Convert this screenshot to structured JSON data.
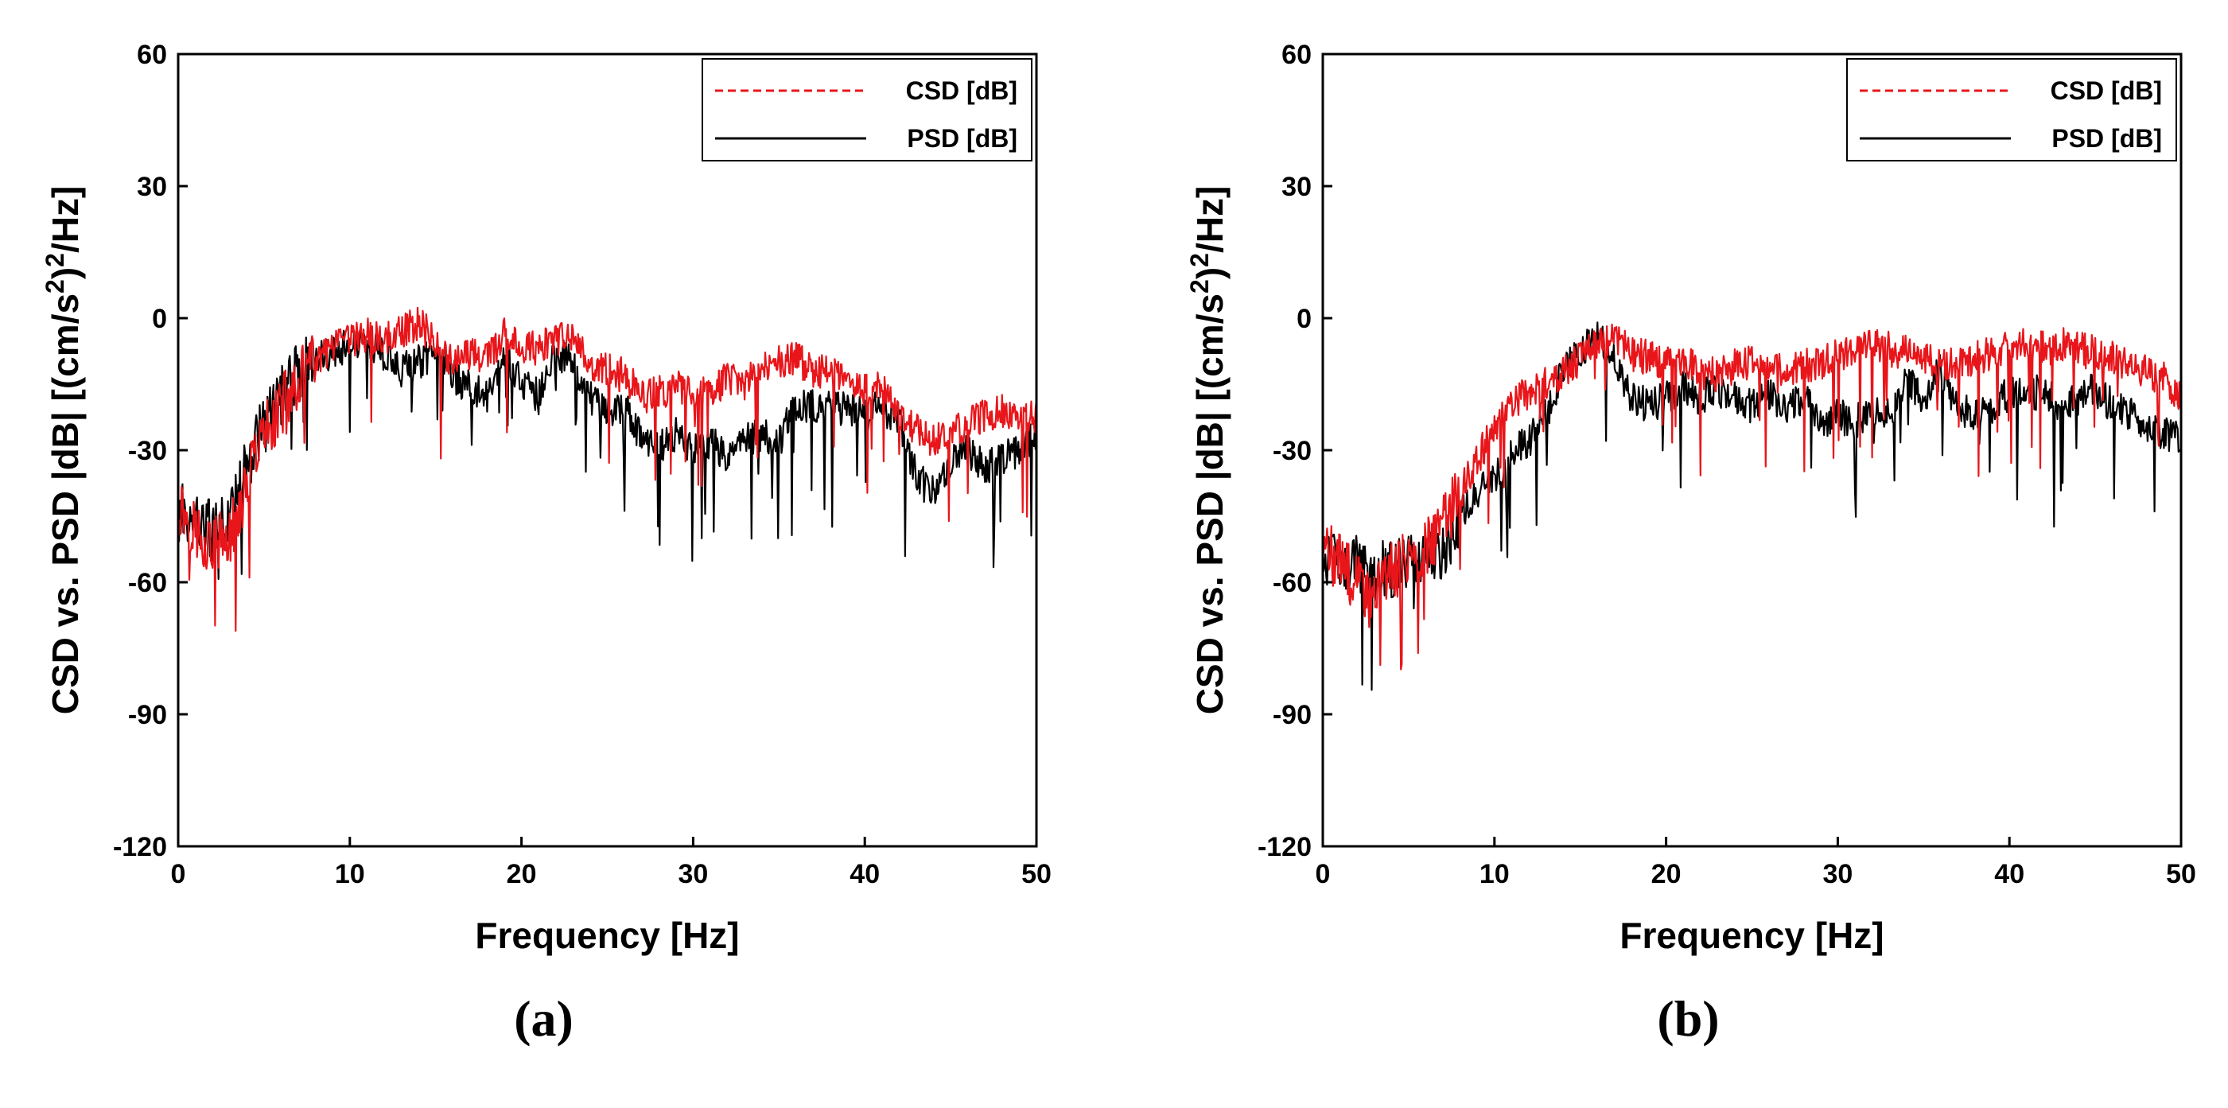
{
  "chart_data": [
    {
      "type": "line",
      "panel_label": "a",
      "caption": "(a)",
      "xlabel": "Frequency [Hz]",
      "ylabel": "CSD vs. PSD |dB| [(cm/s²)²/Hz]",
      "ylabel_parts": [
        "CSD vs. PSD |dB| [(cm/s",
        "2",
        ")",
        "2",
        "/Hz]"
      ],
      "xlim": [
        0,
        50
      ],
      "ylim": [
        -120,
        60
      ],
      "xticks": [
        0,
        10,
        20,
        30,
        40,
        50
      ],
      "yticks": [
        60,
        30,
        0,
        -30,
        -60,
        -90,
        -120
      ],
      "grid": false,
      "legend_position": "top-right",
      "series": [
        {
          "name": "CSD [dB]",
          "color": "#e8161b",
          "style": "dashed",
          "x": [
            0,
            1,
            2,
            3,
            4,
            5,
            6,
            7,
            8,
            9,
            10,
            11,
            12,
            13,
            14,
            15,
            16,
            17,
            18,
            19,
            20,
            21,
            22,
            23,
            24,
            25,
            26,
            27,
            28,
            29,
            30,
            31,
            32,
            33,
            34,
            35,
            36,
            37,
            38,
            39,
            40,
            41,
            42,
            43,
            44,
            45,
            46,
            47,
            48,
            49,
            50
          ],
          "values": [
            -42,
            -48,
            -52,
            -50,
            -38,
            -26,
            -20,
            -14,
            -10,
            -7,
            -5,
            -4,
            -5,
            -3,
            -1,
            -5,
            -10,
            -8,
            -9,
            -4,
            -6,
            -7,
            -5,
            -5,
            -10,
            -12,
            -13,
            -18,
            -17,
            -15,
            -18,
            -16,
            -14,
            -15,
            -11,
            -10,
            -9,
            -12,
            -12,
            -15,
            -16,
            -16,
            -22,
            -25,
            -28,
            -26,
            -24,
            -22,
            -21,
            -24,
            -20
          ]
        },
        {
          "name": "PSD [dB]",
          "color": "#000000",
          "style": "solid",
          "x": [
            0,
            1,
            2,
            3,
            4,
            5,
            6,
            7,
            8,
            9,
            10,
            11,
            12,
            13,
            14,
            15,
            16,
            17,
            18,
            19,
            20,
            21,
            22,
            23,
            24,
            25,
            26,
            27,
            28,
            29,
            30,
            31,
            32,
            33,
            34,
            35,
            36,
            37,
            38,
            39,
            40,
            41,
            42,
            43,
            44,
            45,
            46,
            47,
            48,
            49,
            50
          ],
          "values": [
            -44,
            -46,
            -48,
            -46,
            -34,
            -24,
            -18,
            -12,
            -9,
            -8,
            -6,
            -6,
            -8,
            -12,
            -10,
            -8,
            -13,
            -16,
            -18,
            -8,
            -14,
            -18,
            -8,
            -10,
            -18,
            -22,
            -20,
            -28,
            -30,
            -26,
            -30,
            -28,
            -32,
            -28,
            -26,
            -28,
            -20,
            -20,
            -20,
            -21,
            -22,
            -20,
            -24,
            -36,
            -40,
            -32,
            -30,
            -34,
            -32,
            -30,
            -26
          ]
        }
      ]
    },
    {
      "type": "line",
      "panel_label": "b",
      "caption": "(b)",
      "xlabel": "Frequency [Hz]",
      "ylabel": "CSD vs. PSD |dB| [(cm/s²)²/Hz]",
      "ylabel_parts": [
        "CSD vs. PSD |dB| [(cm/s",
        "2",
        ")",
        "2",
        "/Hz]"
      ],
      "xlim": [
        0,
        50
      ],
      "ylim": [
        -120,
        60
      ],
      "xticks": [
        0,
        10,
        20,
        30,
        40,
        50
      ],
      "yticks": [
        60,
        30,
        0,
        -30,
        -60,
        -90,
        -120
      ],
      "grid": false,
      "legend_position": "top-right",
      "series": [
        {
          "name": "CSD [dB]",
          "color": "#e8161b",
          "style": "dashed",
          "x": [
            0,
            1,
            2,
            3,
            4,
            5,
            6,
            7,
            8,
            9,
            10,
            11,
            12,
            13,
            14,
            15,
            16,
            17,
            18,
            19,
            20,
            21,
            22,
            23,
            24,
            25,
            26,
            27,
            28,
            29,
            30,
            31,
            32,
            33,
            34,
            35,
            36,
            37,
            38,
            39,
            40,
            41,
            42,
            43,
            44,
            45,
            46,
            47,
            48,
            49,
            50
          ],
          "values": [
            -52,
            -56,
            -60,
            -62,
            -58,
            -55,
            -52,
            -46,
            -40,
            -32,
            -25,
            -19,
            -17,
            -15,
            -12,
            -9,
            -6,
            -5,
            -8,
            -9,
            -10,
            -9,
            -12,
            -13,
            -11,
            -10,
            -10,
            -12,
            -11,
            -10,
            -8,
            -7,
            -6,
            -7,
            -8,
            -9,
            -11,
            -10,
            -9,
            -8,
            -7,
            -6,
            -7,
            -6,
            -7,
            -8,
            -9,
            -11,
            -12,
            -14,
            -18
          ]
        },
        {
          "name": "PSD [dB]",
          "color": "#000000",
          "style": "solid",
          "x": [
            0,
            1,
            2,
            3,
            4,
            5,
            6,
            7,
            8,
            9,
            10,
            11,
            12,
            13,
            14,
            15,
            16,
            17,
            18,
            19,
            20,
            21,
            22,
            23,
            24,
            25,
            26,
            27,
            28,
            29,
            30,
            31,
            32,
            33,
            34,
            35,
            36,
            37,
            38,
            39,
            40,
            41,
            42,
            43,
            44,
            45,
            46,
            47,
            48,
            49,
            50
          ],
          "values": [
            -54,
            -55,
            -56,
            -58,
            -57,
            -56,
            -55,
            -52,
            -45,
            -40,
            -37,
            -30,
            -28,
            -22,
            -12,
            -8,
            -4,
            -10,
            -18,
            -20,
            -18,
            -16,
            -18,
            -16,
            -18,
            -20,
            -17,
            -20,
            -18,
            -24,
            -22,
            -24,
            -20,
            -22,
            -14,
            -18,
            -12,
            -20,
            -22,
            -20,
            -17,
            -18,
            -16,
            -20,
            -18,
            -16,
            -20,
            -22,
            -24,
            -26,
            -28
          ]
        }
      ]
    }
  ]
}
